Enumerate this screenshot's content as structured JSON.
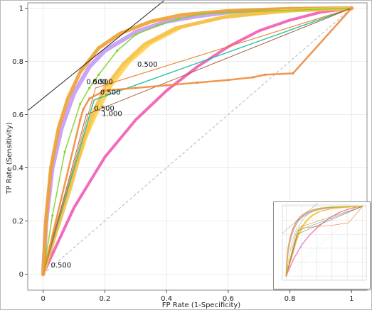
{
  "chart_data": {
    "type": "line",
    "title": "",
    "xlabel": "FP Rate (1-Specificity)",
    "ylabel": "TP Rate (Sensitivity)",
    "xlim": [
      -0.05,
      1.05
    ],
    "ylim": [
      -0.06,
      1.02
    ],
    "x_ticks": [
      "0",
      "0.2",
      "0.4",
      "0.6",
      "0.8",
      "1"
    ],
    "y_ticks": [
      "0",
      "0.2",
      "0.4",
      "0.6",
      "0.8",
      "1"
    ],
    "grid": true,
    "legend": "none",
    "series": [
      {
        "color": "#f15bb5",
        "width": 4,
        "points": [
          [
            0,
            0
          ],
          [
            0.1,
            0.25
          ],
          [
            0.2,
            0.44
          ],
          [
            0.3,
            0.58
          ],
          [
            0.4,
            0.69
          ],
          [
            0.5,
            0.78
          ],
          [
            0.6,
            0.855
          ],
          [
            0.7,
            0.915
          ],
          [
            0.8,
            0.955
          ],
          [
            0.9,
            0.985
          ],
          [
            1,
            1
          ]
        ]
      },
      {
        "color": "#c39bf5",
        "width": 6,
        "points": [
          [
            0,
            0
          ],
          [
            0.01,
            0.2
          ],
          [
            0.03,
            0.4
          ],
          [
            0.06,
            0.55
          ],
          [
            0.1,
            0.68
          ],
          [
            0.15,
            0.78
          ],
          [
            0.2,
            0.84
          ],
          [
            0.3,
            0.91
          ],
          [
            0.4,
            0.95
          ],
          [
            0.5,
            0.97
          ],
          [
            0.6,
            0.985
          ],
          [
            0.8,
            0.995
          ],
          [
            1,
            1
          ]
        ]
      },
      {
        "color": "#f0a030",
        "width": 5,
        "points": [
          [
            0,
            0
          ],
          [
            0.01,
            0.22
          ],
          [
            0.025,
            0.4
          ],
          [
            0.05,
            0.55
          ],
          [
            0.08,
            0.66
          ],
          [
            0.12,
            0.76
          ],
          [
            0.18,
            0.85
          ],
          [
            0.25,
            0.905
          ],
          [
            0.35,
            0.95
          ],
          [
            0.45,
            0.975
          ],
          [
            0.6,
            0.99
          ],
          [
            0.8,
            0.998
          ],
          [
            1,
            1
          ]
        ]
      },
      {
        "color": "#ffd24a",
        "width": 5,
        "points": [
          [
            0,
            0
          ],
          [
            0.05,
            0.2
          ],
          [
            0.1,
            0.38
          ],
          [
            0.14,
            0.52
          ],
          [
            0.17,
            0.6
          ],
          [
            0.22,
            0.71
          ],
          [
            0.28,
            0.8
          ],
          [
            0.35,
            0.87
          ],
          [
            0.45,
            0.93
          ],
          [
            0.6,
            0.97
          ],
          [
            0.8,
            0.99
          ],
          [
            1,
            1
          ]
        ]
      },
      {
        "color": "#f5c04a",
        "width": 5,
        "points": [
          [
            0,
            0
          ],
          [
            0.04,
            0.15
          ],
          [
            0.09,
            0.33
          ],
          [
            0.13,
            0.5
          ],
          [
            0.16,
            0.6
          ],
          [
            0.2,
            0.7
          ],
          [
            0.26,
            0.79
          ],
          [
            0.33,
            0.865
          ],
          [
            0.43,
            0.925
          ],
          [
            0.58,
            0.965
          ],
          [
            0.78,
            0.99
          ],
          [
            1,
            1
          ]
        ]
      },
      {
        "color": "#7ed321",
        "width": 1.5,
        "markers": true,
        "points": [
          [
            0,
            0
          ],
          [
            0.03,
            0.22
          ],
          [
            0.07,
            0.46
          ],
          [
            0.12,
            0.64
          ],
          [
            0.15,
            0.7
          ],
          [
            0.18,
            0.75
          ],
          [
            0.24,
            0.84
          ],
          [
            0.3,
            0.9
          ],
          [
            0.37,
            0.935
          ],
          [
            0.44,
            0.96
          ],
          [
            0.52,
            0.98
          ],
          [
            1,
            1
          ]
        ]
      },
      {
        "color": "#1abc9c",
        "width": 1.5,
        "points": [
          [
            0,
            0
          ],
          [
            0.165,
            0.655
          ],
          [
            1,
            1
          ]
        ]
      },
      {
        "color": "#e67e22",
        "width": 1.2,
        "points": [
          [
            0,
            0
          ],
          [
            0.17,
            0.7
          ],
          [
            1,
            1
          ]
        ]
      },
      {
        "color": "#a0522d",
        "width": 1,
        "points": [
          [
            0,
            0
          ],
          [
            0.14,
            0.6
          ],
          [
            1,
            1
          ]
        ]
      },
      {
        "color": "#f08a3c",
        "width": 2.5,
        "markers": true,
        "points": [
          [
            0,
            0
          ],
          [
            0.12,
            0.58
          ],
          [
            0.13,
            0.62
          ],
          [
            0.15,
            0.66
          ],
          [
            0.2,
            0.69
          ],
          [
            0.3,
            0.7
          ],
          [
            0.4,
            0.71
          ],
          [
            0.5,
            0.72
          ],
          [
            0.6,
            0.73
          ],
          [
            0.68,
            0.74
          ],
          [
            0.72,
            0.75
          ],
          [
            0.81,
            0.755
          ],
          [
            1,
            1
          ]
        ]
      }
    ],
    "diagonal": {
      "color": "#b5b5b5",
      "points": [
        [
          0,
          0
        ],
        [
          1,
          1
        ]
      ]
    },
    "tangent": {
      "color": "#222222",
      "points": [
        [
          -0.05,
          0.615
        ],
        [
          0.415,
          1.05
        ]
      ]
    },
    "threshold_labels": [
      {
        "text": "0.500",
        "at": [
          0.305,
          0.78
        ]
      },
      {
        "text": "0.500",
        "at": [
          0.14,
          0.715
        ]
      },
      {
        "text": "0.500",
        "at": [
          0.16,
          0.715
        ]
      },
      {
        "text": "0.500",
        "at": [
          0.185,
          0.675
        ]
      },
      {
        "text": "0.500",
        "at": [
          0.165,
          0.615
        ]
      },
      {
        "text": "1.000",
        "at": [
          0.19,
          0.595
        ]
      },
      {
        "text": "0.500",
        "at": [
          0.025,
          0.025
        ]
      }
    ]
  }
}
